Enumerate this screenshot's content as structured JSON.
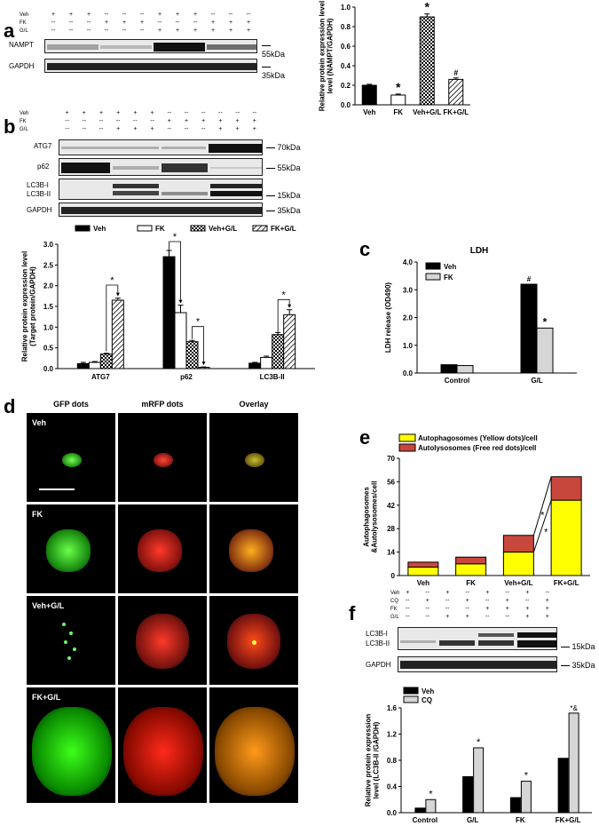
{
  "figure": {
    "panel_labels": [
      "a",
      "b",
      "c",
      "d",
      "e",
      "f"
    ]
  },
  "panel_a": {
    "conditions": [
      [
        "+",
        "+",
        "+",
        "--",
        "--",
        "--",
        "+",
        "+",
        "+",
        "--",
        "--",
        "--"
      ],
      [
        "--",
        "--",
        "--",
        "+",
        "+",
        "+",
        "--",
        "--",
        "--",
        "+",
        "+",
        "+"
      ],
      [
        "--",
        "--",
        "--",
        "--",
        "--",
        "--",
        "+",
        "+",
        "+",
        "+",
        "+",
        "+"
      ]
    ],
    "row_names": [
      "Veh",
      "FK",
      "G/L"
    ],
    "blots": [
      {
        "name": "NAMPT",
        "mw": "55kDa"
      },
      {
        "name": "GAPDH",
        "mw": "35kDa"
      }
    ]
  },
  "panel_b": {
    "conditions": [
      [
        "+",
        "+",
        "+",
        "+",
        "+",
        "+",
        "--",
        "--",
        "--",
        "--",
        "--",
        "--"
      ],
      [
        "--",
        "--",
        "--",
        "--",
        "--",
        "--",
        "+",
        "+",
        "+",
        "+",
        "+",
        "+"
      ],
      [
        "--",
        "--",
        "--",
        "+",
        "+",
        "+",
        "--",
        "--",
        "--",
        "+",
        "+",
        "+"
      ]
    ],
    "row_names": [
      "Veh",
      "FK",
      "G/L"
    ],
    "blots": [
      {
        "name": "ATG7",
        "mw": "70kDa"
      },
      {
        "name": "p62",
        "mw": "55kDa"
      },
      {
        "name": "LC3B-I",
        "mw": ""
      },
      {
        "name": "LC3B-II",
        "mw": "15kDa"
      },
      {
        "name": "GAPDH",
        "mw": "35kDa"
      }
    ]
  },
  "panel_d": {
    "columns": [
      "GFP dots",
      "mRFP dots",
      "Overlay"
    ],
    "rows": [
      "Veh",
      "FK",
      "Veh+G/L",
      "FK+G/L"
    ]
  },
  "panel_f": {
    "conditions": [
      [
        "+",
        "--",
        "+",
        "--",
        "+",
        "--",
        "+",
        "--"
      ],
      [
        "--",
        "+",
        "--",
        "+",
        "--",
        "+",
        "--",
        "+"
      ],
      [
        "--",
        "--",
        "--",
        "--",
        "+",
        "+",
        "+",
        "+"
      ],
      [
        "--",
        "--",
        "+",
        "+",
        "--",
        "--",
        "+",
        "+"
      ]
    ],
    "row_names": [
      "Veh",
      "CQ",
      "FK",
      "G/L"
    ],
    "blots": [
      {
        "name": "LC3B-I",
        "mw": ""
      },
      {
        "name": "LC3B-II",
        "mw": "15kDa"
      },
      {
        "name": "GAPDH",
        "mw": "35kDa"
      }
    ]
  },
  "chart_data": [
    {
      "id": "a",
      "type": "bar",
      "title": "",
      "ylabel": "Relative protein expression level (NAMPT/GAPDH)",
      "categories": [
        "Veh",
        "FK",
        "Veh+G/L",
        "FK+G/L"
      ],
      "values": [
        0.2,
        0.1,
        0.9,
        0.26
      ],
      "errors": [
        0.01,
        0.01,
        0.03,
        0.015
      ],
      "annotations": [
        "",
        "*",
        "*",
        "#"
      ],
      "ylim": [
        0,
        1.0
      ],
      "yticks": [
        "0.0",
        "0.2",
        "0.4",
        "0.6",
        "0.8",
        "1.0"
      ]
    },
    {
      "id": "b",
      "type": "bar",
      "ylabel": "Relative protein expression level (Target protein/GAPDH)",
      "categories": [
        "ATG7",
        "p62",
        "LC3B-II"
      ],
      "series": [
        {
          "name": "Veh",
          "values": [
            0.12,
            2.7,
            0.13
          ]
        },
        {
          "name": "FK",
          "values": [
            0.15,
            1.35,
            0.27
          ]
        },
        {
          "name": "Veh+G/L",
          "values": [
            0.35,
            0.65,
            0.82
          ]
        },
        {
          "name": "FK+G/L",
          "values": [
            1.65,
            0.03,
            1.3
          ]
        }
      ],
      "errors": [
        [
          0.03,
          0.15,
          0.02
        ],
        [
          0.02,
          0.18,
          0.03
        ],
        [
          0.02,
          0.03,
          0.05
        ],
        [
          0.05,
          0.01,
          0.12
        ]
      ],
      "star": "*",
      "ylim": [
        0,
        3.0
      ],
      "yticks": [
        "0.0",
        "0.5",
        "1.0",
        "1.5",
        "2.0",
        "2.5",
        "3.0"
      ]
    },
    {
      "id": "c",
      "type": "bar",
      "title": "LDH",
      "ylabel": "LDH release (OD490)",
      "categories": [
        "Control",
        "G/L"
      ],
      "series": [
        {
          "name": "Veh",
          "values": [
            0.3,
            3.2
          ]
        },
        {
          "name": "FK",
          "values": [
            0.27,
            1.62
          ]
        }
      ],
      "annotations": [
        "#",
        "*"
      ],
      "ylim": [
        0,
        4.0
      ],
      "yticks": [
        "0.0",
        "1.0",
        "2.0",
        "3.0",
        "4.0"
      ]
    },
    {
      "id": "e",
      "type": "bar",
      "stacked": true,
      "ylabel": "Autophagosomes &Autolysosomes/cell",
      "categories": [
        "Veh",
        "FK",
        "Veh+G/L",
        "FK+G/L"
      ],
      "series": [
        {
          "name": "Autophagosomes (Yellow dots)/cell",
          "values": [
            5,
            7,
            14,
            45
          ]
        },
        {
          "name": "Autolysosomes (Free red dots)/cell",
          "values": [
            3,
            4,
            10,
            14
          ]
        }
      ],
      "annotations": [
        "*",
        "*"
      ],
      "ylim": [
        0,
        70
      ],
      "yticks": [
        "0",
        "14",
        "28",
        "42",
        "56",
        "70"
      ],
      "colors": [
        "#ffff00",
        "#c8473d"
      ]
    },
    {
      "id": "f",
      "type": "bar",
      "ylabel": "Relative protein expression level (LC3B-II /GAPDH)",
      "categories": [
        "Control",
        "G/L",
        "FK",
        "FK+G/L"
      ],
      "series": [
        {
          "name": "Veh",
          "values": [
            0.07,
            0.55,
            0.23,
            0.83
          ]
        },
        {
          "name": "CQ",
          "values": [
            0.2,
            0.99,
            0.48,
            1.52
          ]
        }
      ],
      "annotations": [
        "*",
        "*",
        "*",
        "*&"
      ],
      "ylim": [
        0,
        1.6
      ],
      "yticks": [
        "0.0",
        "0.4",
        "0.8",
        "1.2",
        "1.6"
      ]
    }
  ]
}
